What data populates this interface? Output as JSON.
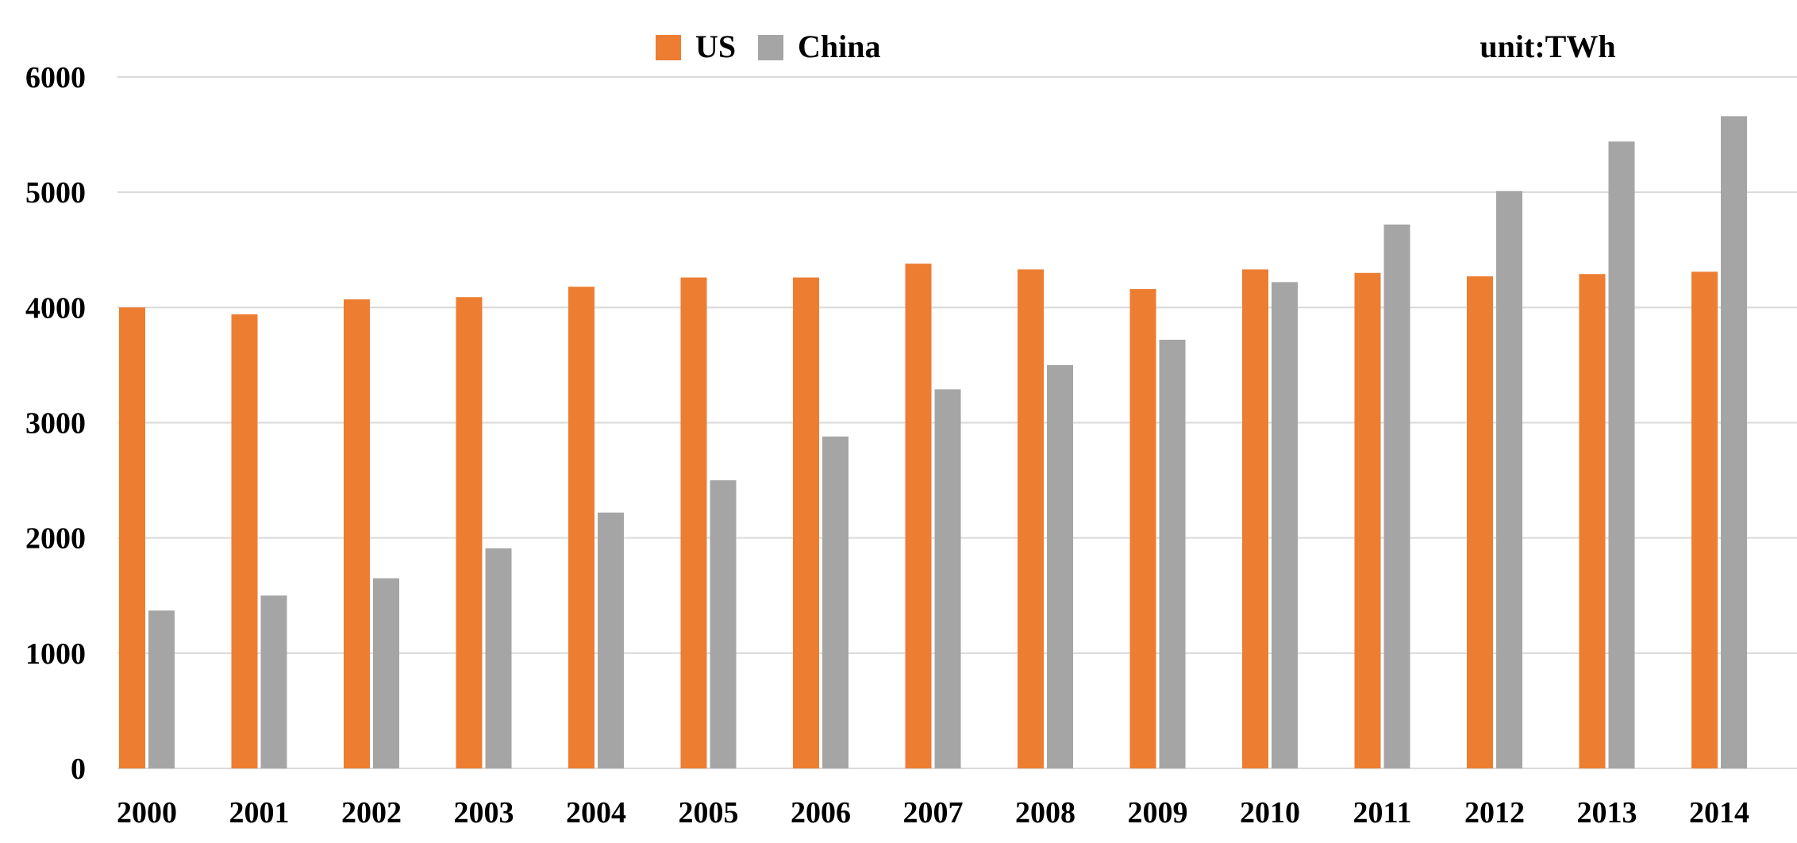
{
  "chart_data": {
    "type": "bar",
    "categories": [
      "2000",
      "2001",
      "2002",
      "2003",
      "2004",
      "2005",
      "2006",
      "2007",
      "2008",
      "2009",
      "2010",
      "2011",
      "2012",
      "2013",
      "2014"
    ],
    "series": [
      {
        "name": "US",
        "color": "#ed7d31",
        "values": [
          4000,
          3940,
          4070,
          4090,
          4180,
          4260,
          4260,
          4380,
          4330,
          4160,
          4330,
          4300,
          4270,
          4290,
          4310
        ]
      },
      {
        "name": "China",
        "color": "#a5a5a5",
        "values": [
          1370,
          1500,
          1650,
          1910,
          2220,
          2500,
          2880,
          3290,
          3500,
          3720,
          4220,
          4720,
          5010,
          5440,
          5660
        ]
      }
    ],
    "ylim": [
      0,
      6000
    ],
    "yticks": [
      "0",
      "1000",
      "2000",
      "3000",
      "4000",
      "5000",
      "6000"
    ],
    "unit_label": "unit:TWh",
    "legend_position": "top-center",
    "grid": true
  }
}
